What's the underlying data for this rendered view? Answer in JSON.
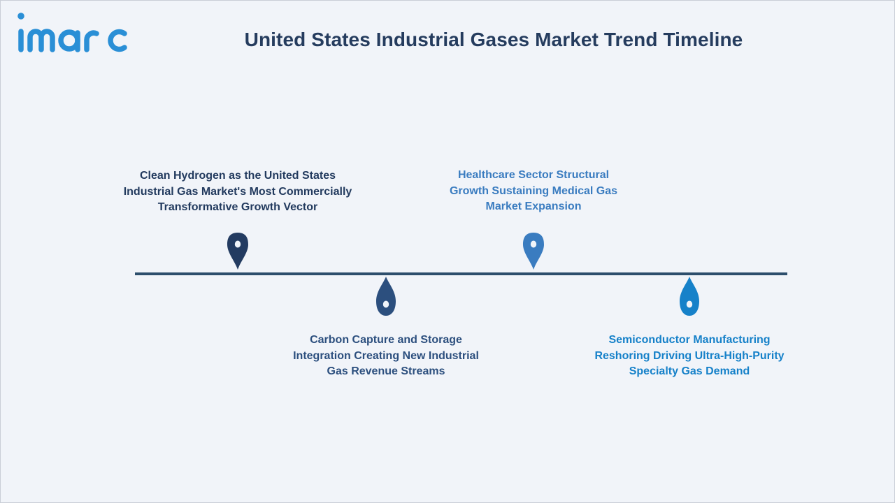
{
  "header": {
    "brand": "imarc",
    "title": "United States Industrial Gases Market Trend Timeline"
  },
  "colors": {
    "title": "#253c5e",
    "axis": "#2d4e6c",
    "brand": "#2a8fd6",
    "marker_1": "#233b61",
    "marker_2": "#2c4f7e",
    "marker_3": "#3a7cc0",
    "marker_4": "#1681c9"
  },
  "milestones": [
    {
      "position": "above",
      "icon": "map-pin-icon",
      "lines": [
        "Clean Hydrogen as the United States",
        "Industrial Gas Market's Most Commercially",
        "Transformative Growth Vector"
      ]
    },
    {
      "position": "below",
      "icon": "droplet-icon",
      "lines": [
        "Carbon Capture and Storage",
        "Integration Creating New Industrial",
        "Gas Revenue Streams"
      ]
    },
    {
      "position": "above",
      "icon": "map-pin-icon",
      "lines": [
        "Healthcare Sector Structural",
        "Growth Sustaining Medical Gas",
        "Market Expansion"
      ]
    },
    {
      "position": "below",
      "icon": "droplet-icon",
      "lines": [
        "Semiconductor Manufacturing",
        "Reshoring Driving Ultra-High-Purity",
        "Specialty Gas Demand"
      ]
    }
  ]
}
